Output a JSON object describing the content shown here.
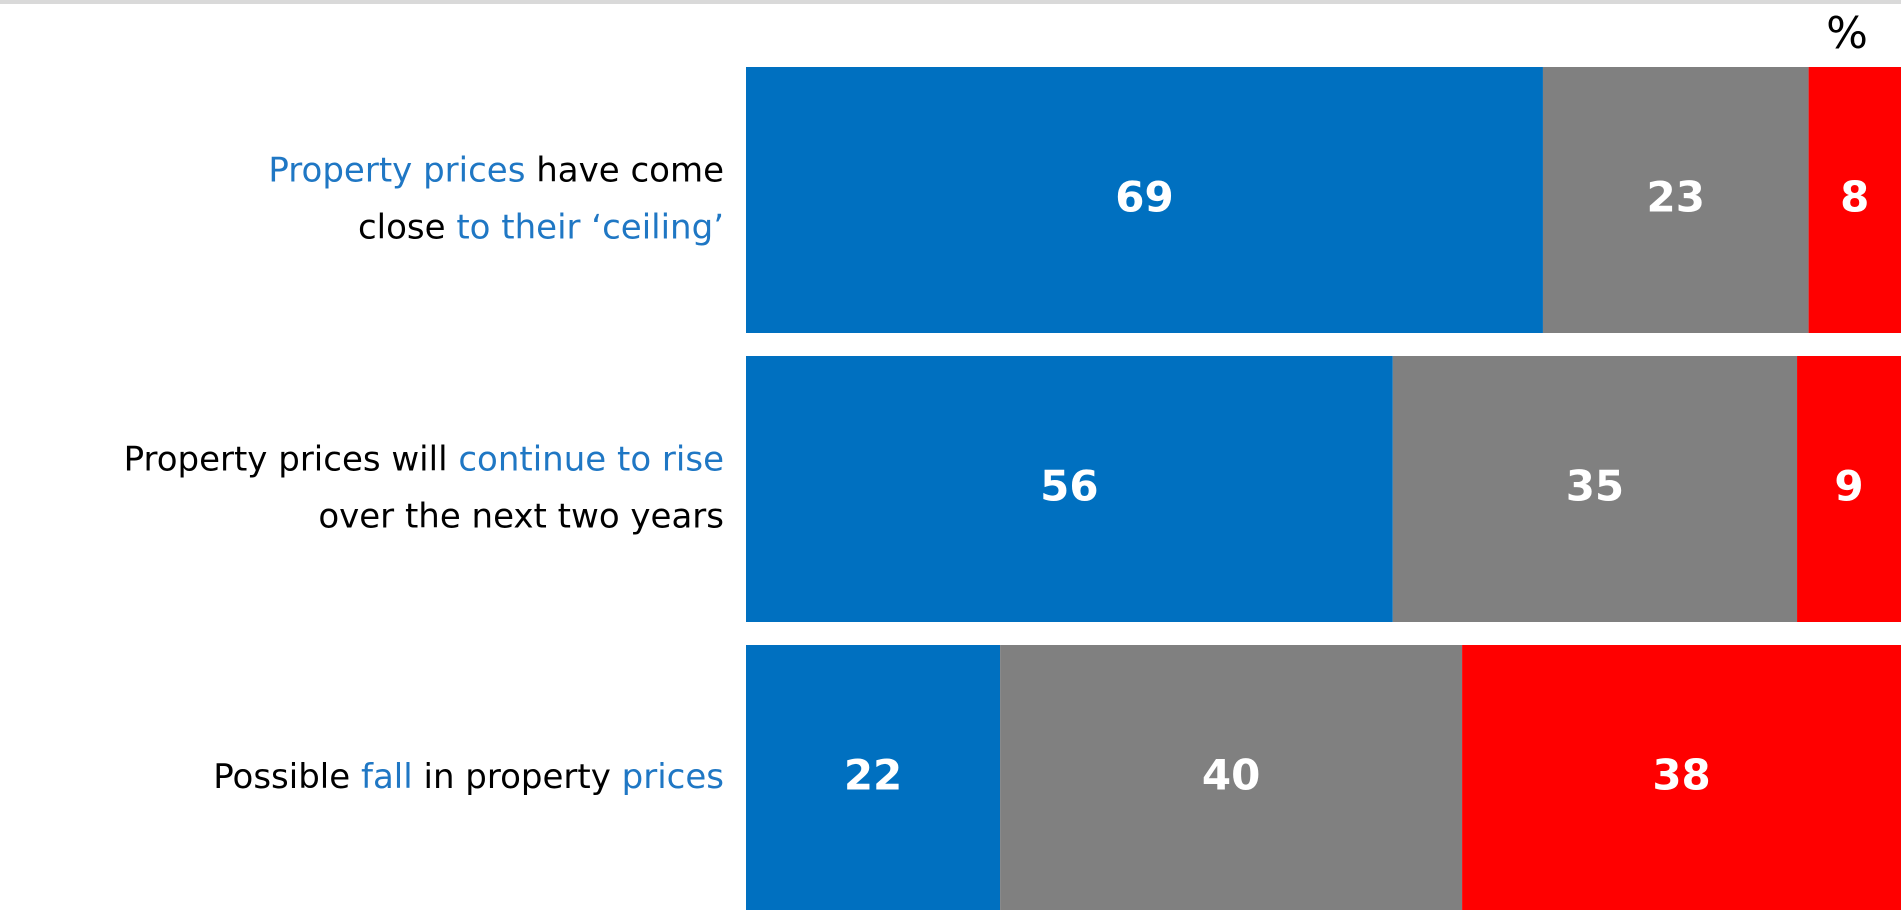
{
  "chart_data": {
    "type": "stacked-bar-horizontal",
    "unit_label": "%",
    "categories": [
      [
        [
          {
            "text": "Property prices",
            "color": "#1f77c4"
          },
          {
            "text": " have come",
            "color": "#000000"
          }
        ],
        [
          {
            "text": "close ",
            "color": "#000000"
          },
          {
            "text": "to their ‘ceiling’",
            "color": "#1f77c4"
          }
        ]
      ],
      [
        [
          {
            "text": "Property prices will ",
            "color": "#000000"
          },
          {
            "text": "continue to rise",
            "color": "#1f77c4"
          }
        ],
        [
          {
            "text": "over the next two years",
            "color": "#000000"
          }
        ]
      ],
      [
        [
          {
            "text": "Possible ",
            "color": "#000000"
          },
          {
            "text": "fall",
            "color": "#1f77c4"
          },
          {
            "text": " in property ",
            "color": "#000000"
          },
          {
            "text": "prices",
            "color": "#1f77c4"
          }
        ]
      ]
    ],
    "series": [
      {
        "color": "#0070c0",
        "values": [
          69,
          56,
          22
        ]
      },
      {
        "color": "#808080",
        "values": [
          23,
          35,
          40
        ]
      },
      {
        "color": "#ff0000",
        "values": [
          8,
          9,
          38
        ]
      }
    ],
    "xlim": [
      0,
      100
    ]
  }
}
